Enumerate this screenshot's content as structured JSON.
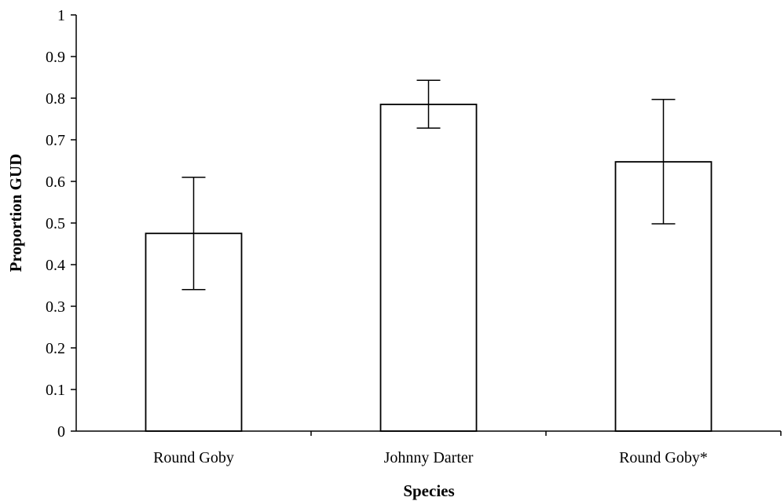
{
  "chart_data": {
    "type": "bar",
    "title": "",
    "xlabel": "Species",
    "ylabel": "Proportion GUD",
    "categories": [
      "Round Goby",
      "Johnny Darter",
      "Round Goby*"
    ],
    "values": [
      0.475,
      0.785,
      0.647
    ],
    "error_low": [
      0.34,
      0.728,
      0.498
    ],
    "error_high": [
      0.61,
      0.843,
      0.797
    ],
    "ylim": [
      0,
      1
    ],
    "yticks": [
      "0",
      "0.1",
      "0.2",
      "0.3",
      "0.4",
      "0.5",
      "0.6",
      "0.7",
      "0.8",
      "0.9",
      "1"
    ],
    "grid": false,
    "legend": "none",
    "bar_fill": "#ffffff",
    "bar_stroke": "#000000"
  }
}
